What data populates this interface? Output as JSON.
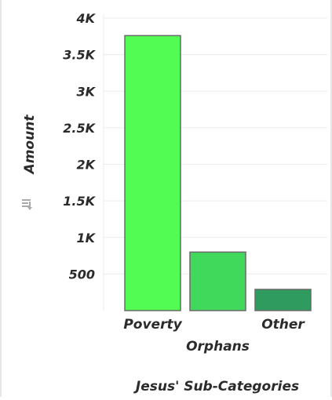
{
  "chart_data": {
    "type": "bar",
    "title": "",
    "xlabel": "Jesus' Sub-Categories",
    "ylabel": "Amount",
    "categories": [
      "Poverty",
      "Orphans",
      "Other"
    ],
    "values": [
      3760,
      800,
      290
    ],
    "colors": [
      "#52fc52",
      "#40d95c",
      "#2f9b5e"
    ],
    "ylim": [
      0,
      4000
    ],
    "yticks": [
      500,
      1000,
      1500,
      2000,
      2500,
      3000,
      3500,
      4000
    ],
    "ytick_labels": [
      "500",
      "1K",
      "1.5K",
      "2K",
      "2.5K",
      "3K",
      "3.5K",
      "4K"
    ],
    "grid": true,
    "legend": "none"
  },
  "ylabel_icon": "sort-options-icon"
}
